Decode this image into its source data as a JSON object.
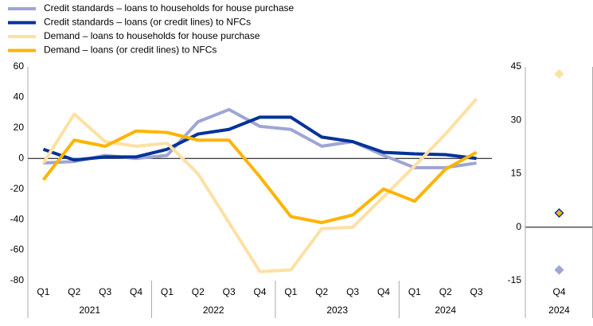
{
  "chart_data": [
    {
      "type": "line",
      "categories": [
        "Q1",
        "Q2",
        "Q3",
        "Q4",
        "Q1",
        "Q2",
        "Q3",
        "Q4",
        "Q1",
        "Q2",
        "Q3",
        "Q4",
        "Q1",
        "Q2",
        "Q3"
      ],
      "x_groups": [
        "2021",
        "2022",
        "2023",
        "2024"
      ],
      "ylim": [
        -80,
        60
      ],
      "yticks": [
        -80,
        -60,
        -40,
        -20,
        0,
        20,
        40,
        60
      ],
      "series": [
        {
          "name": "Credit standards – loans to households for house purchase",
          "color": "#9fa5d3",
          "values": [
            -3,
            -2,
            2,
            0,
            2,
            24,
            32,
            21,
            19,
            8,
            11,
            2,
            -6,
            -6,
            -3
          ]
        },
        {
          "name": "Credit standards – loans (or credit lines) to NFCs",
          "color": "#003299",
          "values": [
            6,
            -1,
            1,
            1,
            6,
            16,
            19,
            27,
            27,
            14,
            11,
            4,
            3,
            2.5,
            0
          ]
        },
        {
          "name": "Demand – loans to households for house purchase",
          "color": "#fde0a4",
          "values": [
            -3,
            29,
            11,
            8,
            10,
            -10,
            -42,
            -74,
            -73,
            -46,
            -45,
            -25,
            -5,
            16,
            39
          ]
        },
        {
          "name": "Demand – loans (or credit lines) to NFCs",
          "color": "#ffb400",
          "values": [
            -14,
            12,
            8,
            18,
            17,
            12,
            12,
            -12,
            -38,
            -42,
            -37,
            -20,
            -28,
            -7,
            4
          ]
        }
      ]
    },
    {
      "type": "dot",
      "categories": [
        "Q4"
      ],
      "x_groups": [
        "2024"
      ],
      "ylim": [
        -15,
        45
      ],
      "yticks": [
        -15,
        0,
        15,
        30,
        45
      ],
      "series": [
        {
          "color": "#9fa5d3",
          "values": [
            -12
          ]
        },
        {
          "color": "#003299",
          "values": [
            4
          ]
        },
        {
          "color": "#fde0a4",
          "values": [
            43
          ]
        },
        {
          "color": "#ffb400",
          "values": [
            4
          ]
        }
      ]
    }
  ]
}
